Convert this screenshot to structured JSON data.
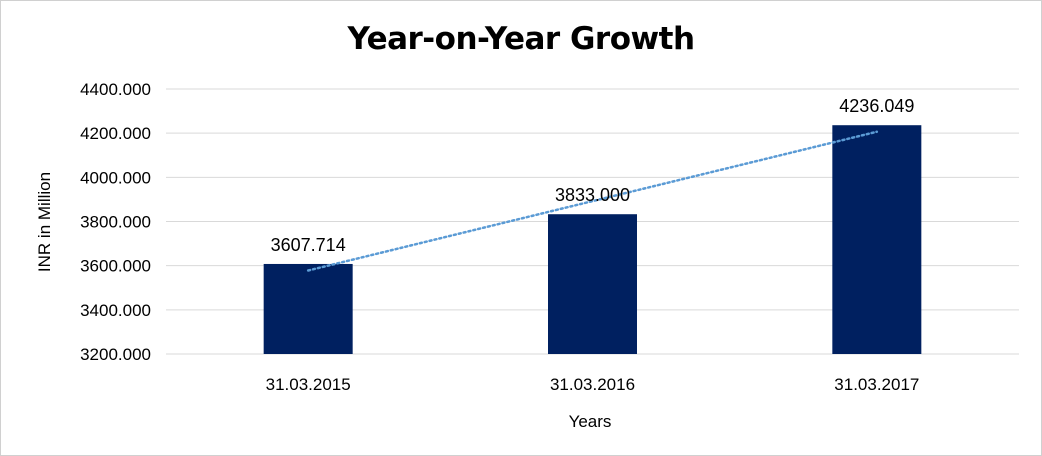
{
  "chart_data": {
    "type": "bar",
    "title": "Year-on-Year Growth",
    "xlabel": "Years",
    "ylabel": "INR in Million",
    "categories": [
      "31.03.2015",
      "31.03.2016",
      "31.03.2017"
    ],
    "values": [
      3607.714,
      3833.0,
      4236.049
    ],
    "data_labels": [
      "3607.714",
      "3833.000",
      "4236.049"
    ],
    "ylim": [
      3200,
      4400
    ],
    "y_ticks": [
      3200,
      3400,
      3600,
      3800,
      4000,
      4200,
      4400
    ],
    "y_tick_labels": [
      "3200.000",
      "3400.000",
      "3600.000",
      "3800.000",
      "4000.000",
      "4200.000",
      "4400.000"
    ],
    "grid": true,
    "legend": "none",
    "trendline": {
      "type": "linear",
      "style": "dotted",
      "color": "#5b9bd5"
    },
    "colors": {
      "bar": "#002060",
      "grid": "#d9d9d9",
      "text": "#000000"
    }
  }
}
